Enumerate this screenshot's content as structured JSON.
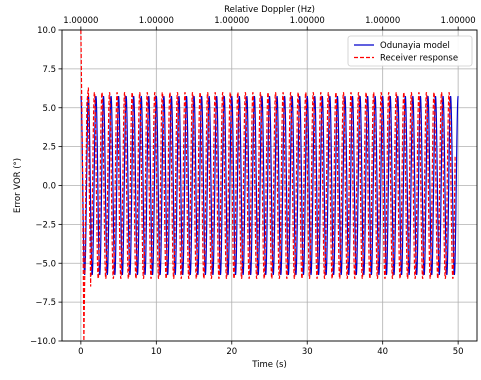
{
  "chart_data": {
    "type": "line",
    "title": "",
    "xlabel": "Time (s)",
    "ylabel": "Error VOR (°)",
    "top_xlabel": "Relative Doppler (Hz)",
    "xlim": [
      -2.5,
      52.5
    ],
    "ylim": [
      -10.0,
      10.0
    ],
    "x_ticks": [
      0,
      10,
      20,
      30,
      40,
      50
    ],
    "x_tick_labels": [
      "0",
      "10",
      "20",
      "30",
      "40",
      "50"
    ],
    "y_ticks": [
      -10.0,
      -7.5,
      -5.0,
      -2.5,
      0.0,
      2.5,
      5.0,
      7.5,
      10.0
    ],
    "y_tick_labels": [
      "−10.0",
      "−7.5",
      "−5.0",
      "−2.5",
      "0.0",
      "2.5",
      "5.0",
      "7.5",
      "10.0"
    ],
    "top_x_ticks": [
      0,
      10,
      20,
      30,
      40,
      50
    ],
    "top_x_tick_labels": [
      "1.00000",
      "1.00000",
      "1.00000",
      "1.00000",
      "1.00000",
      "1.00000"
    ],
    "grid": true,
    "legend_position": "top-right",
    "series": [
      {
        "name": "Odunayia model",
        "color": "#0000cc",
        "dash": "solid",
        "model": "sinusoid",
        "amplitude": 5.75,
        "frequency_hz": 1.0,
        "x_start": 0.0,
        "x_end": 50.0,
        "start_value": 5.75,
        "end_value": 5.75
      },
      {
        "name": "Receiver response",
        "color": "#ff0000",
        "dash": "dashed",
        "model": "sinusoid",
        "amplitude": 6.0,
        "frequency_hz": 1.0,
        "x_start": 0.0,
        "x_end": 49.6,
        "transient_points": [
          [
            0.0,
            10.0
          ],
          [
            0.2,
            2.0
          ],
          [
            0.4,
            -10.0
          ],
          [
            0.6,
            -2.5
          ],
          [
            0.8,
            5.3
          ],
          [
            1.0,
            6.3
          ],
          [
            1.1,
            0.5
          ],
          [
            1.3,
            -6.5
          ]
        ]
      }
    ]
  }
}
